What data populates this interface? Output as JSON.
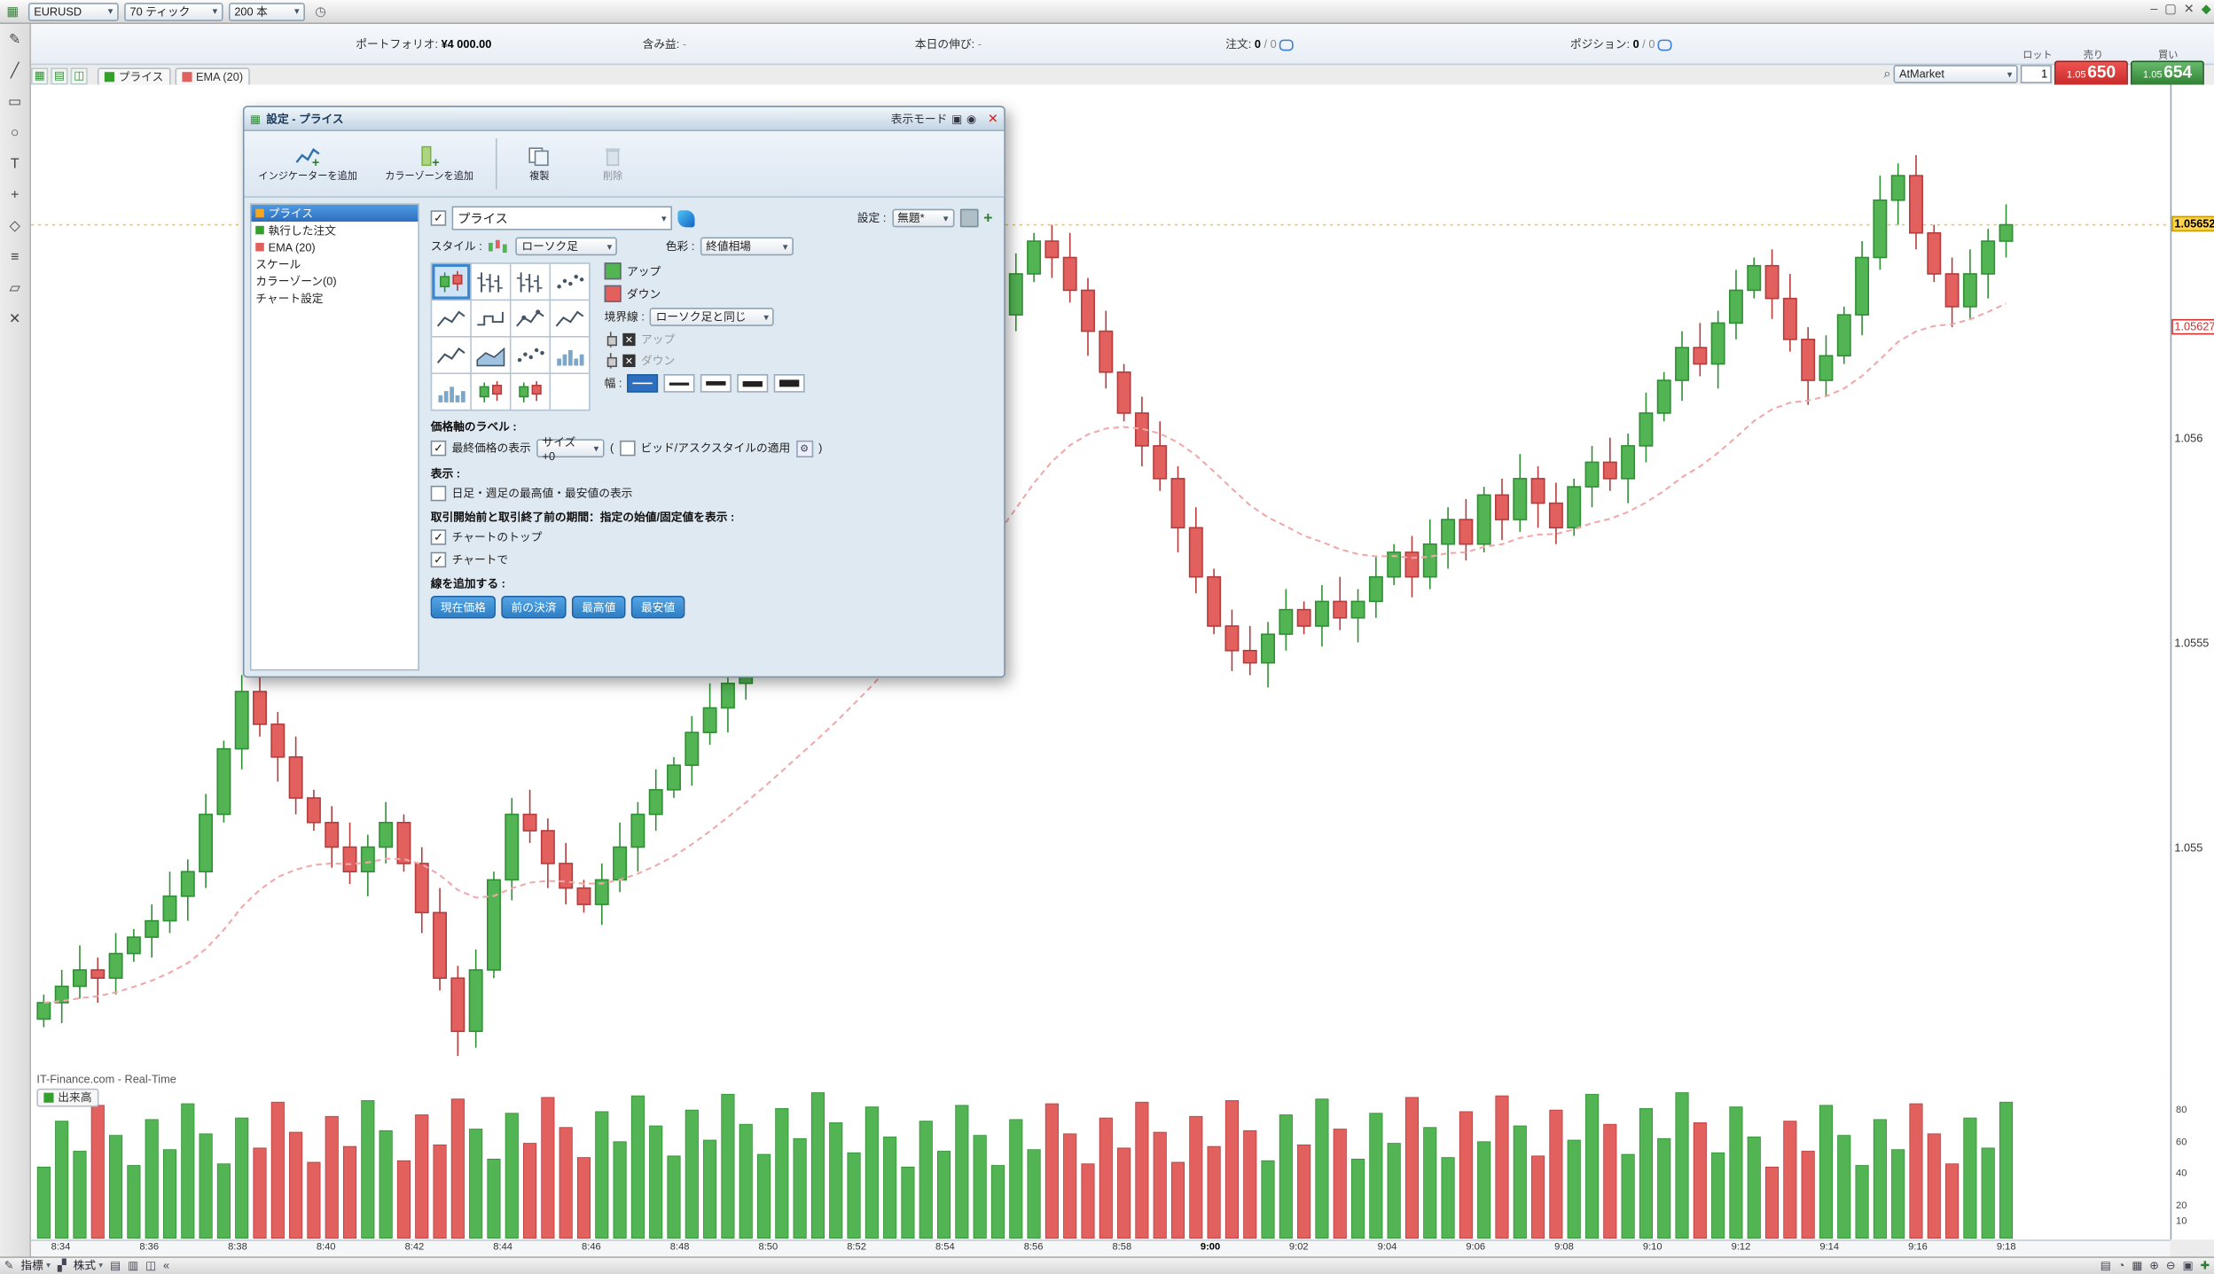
{
  "window": {
    "minimize": "‒",
    "maximize": "▢",
    "close": "✕",
    "corner_icon": "◆"
  },
  "top_toolbar": {
    "symbol": "EURUSD",
    "timeframe": "70 ティック",
    "bars": "200 本",
    "chart_icon": "▦",
    "alarm_icon": "◷"
  },
  "account_bar": {
    "items": [
      {
        "label": "ポートフォリオ:",
        "value": "¥4 000.00",
        "dim": false
      },
      {
        "label": "含み益:",
        "value": "-",
        "dim": true
      },
      {
        "label": "本日の伸び:",
        "value": "-",
        "dim": true
      },
      {
        "label": "注文:",
        "value": "0",
        "value2": "/ 0",
        "dim": false
      },
      {
        "label": "ポジション:",
        "value": "0",
        "value2": "/ 0",
        "dim": false
      }
    ]
  },
  "order_ticket": {
    "lot_label": "ロット",
    "sell_label": "売り",
    "buy_label": "買い",
    "lot_value": "1",
    "order_type": "AtMarket",
    "sell_price_small": "1.05",
    "sell_price_big": "650",
    "buy_price_small": "1.05",
    "buy_price_big": "654"
  },
  "legend": {
    "items": [
      {
        "label": "プライス",
        "color": "#33a02c"
      },
      {
        "label": "EMA (20)",
        "color": "#e0605e"
      }
    ]
  },
  "left_tools": [
    {
      "name": "pencil-icon",
      "glyph": "✎"
    },
    {
      "name": "line-icon",
      "glyph": "╱"
    },
    {
      "name": "rect-icon",
      "glyph": "▭"
    },
    {
      "name": "ellipse-icon",
      "glyph": "○"
    },
    {
      "name": "text-icon",
      "glyph": "T"
    },
    {
      "name": "crosshair-icon",
      "glyph": "+"
    },
    {
      "name": "shapes-icon",
      "glyph": "◇"
    },
    {
      "name": "layers-icon",
      "glyph": "≡"
    },
    {
      "name": "eraser-icon",
      "glyph": "▱"
    },
    {
      "name": "trash-icon",
      "glyph": "✕"
    }
  ],
  "dialog": {
    "title": "設定 - プライス",
    "display_mode_label": "表示モード",
    "toolbar": [
      {
        "label": "インジケーターを追加",
        "disabled": false
      },
      {
        "label": "カラーゾーンを追加",
        "disabled": false
      },
      {
        "label": "複製",
        "disabled": false
      },
      {
        "label": "削除",
        "disabled": true
      }
    ],
    "list": [
      {
        "label": "プライス",
        "color": "#f5a623",
        "selected": true
      },
      {
        "label": "執行した注文",
        "color": "#33a02c",
        "selected": false
      },
      {
        "label": "EMA (20)",
        "color": "#e0605e",
        "selected": false
      },
      {
        "label": "スケール",
        "color": "",
        "selected": false
      },
      {
        "label": "カラーゾーン(0)",
        "color": "",
        "selected": false
      },
      {
        "label": "チャート設定",
        "color": "",
        "selected": false
      }
    ],
    "name_value": "プライス",
    "settings_label": "設定 :",
    "preset_value": "無題*",
    "style_label": "スタイル :",
    "style_value": "ローソク足",
    "color_label": "色彩 :",
    "color_value": "終値相場",
    "up_label": "アップ",
    "down_label": "ダウン",
    "border_label": "境界線 :",
    "border_value": "ローソク足と同じ",
    "width_label": "幅 :",
    "price_axis_section": "価格軸のラベル :",
    "last_price_label": "最終価格の表示",
    "size_value": "サイズ +0",
    "paren_open": "(",
    "paren_close": ")",
    "bidask_label": "ビッド/アスクスタイルの適用",
    "display_section": "表示 :",
    "daily_hl_label": "日足・週足の最高値・最安値の表示",
    "session_section": "取引開始前と取引終了前の期間：指定の始値/固定値を表示 :",
    "chart_top_label": "チャートのトップ",
    "chart_in_label": "チャートで",
    "add_line_section": "線を追加する :",
    "line_buttons": [
      "現在価格",
      "前の決済",
      "最高値",
      "最安値"
    ],
    "style_grid": [
      "candles",
      "bars",
      "bars",
      "dots",
      "line",
      "step",
      "linedots",
      "line",
      "line",
      "area",
      "dots",
      "hist",
      "hist",
      "candles",
      "candles"
    ]
  },
  "chart_data": {
    "type": "candlestick+volume",
    "symbol": "EURUSD",
    "interval": "70 ティック",
    "bars_setting": "200 本",
    "watermark": "IT-Finance.com - Real-Time",
    "volume_legend": "出来高",
    "legend_series": [
      "プライス",
      "EMA (20)"
    ],
    "time_labels": [
      "8:34",
      "8:36",
      "8:38",
      "8:40",
      "8:42",
      "8:44",
      "8:46",
      "8:48",
      "8:50",
      "8:52",
      "8:54",
      "8:56",
      "8:58",
      "9:00",
      "9:02",
      "9:04",
      "9:06",
      "9:08",
      "9:10",
      "9:12",
      "9:14",
      "9:16",
      "9:18"
    ],
    "bold_time_label": "9:00",
    "price_axis_labels": [
      {
        "text": "1.056",
        "price": 1.056
      },
      {
        "text": "1.0555",
        "price": 1.0555
      },
      {
        "text": "1.055",
        "price": 1.055
      }
    ],
    "current_price": {
      "text": "1.05652",
      "price": 1.05652
    },
    "alt_price": {
      "text": "1.05627",
      "price": 1.05627
    },
    "volume_axis": [
      80,
      60,
      40,
      20,
      10
    ],
    "pip_base": 1.05,
    "first_open_pips": 458,
    "ema_period": 20,
    "closes_pips": [
      462,
      466,
      470,
      468,
      474,
      478,
      482,
      488,
      494,
      508,
      524,
      538,
      530,
      522,
      512,
      506,
      500,
      494,
      500,
      506,
      496,
      484,
      468,
      455,
      470,
      492,
      508,
      504,
      496,
      490,
      486,
      492,
      500,
      508,
      514,
      520,
      528,
      534,
      540,
      545,
      550,
      556,
      560,
      564,
      570,
      576,
      582,
      590,
      598,
      606,
      612,
      618,
      622,
      630,
      640,
      648,
      644,
      636,
      626,
      616,
      606,
      598,
      590,
      578,
      566,
      554,
      548,
      545,
      552,
      558,
      554,
      560,
      556,
      560,
      566,
      572,
      566,
      574,
      580,
      574,
      586,
      580,
      590,
      584,
      578,
      588,
      594,
      590,
      598,
      606,
      614,
      622,
      618,
      628,
      636,
      642,
      634,
      624,
      614,
      620,
      630,
      644,
      658,
      664,
      650,
      640,
      632,
      640,
      648,
      652
    ],
    "colors": {
      "up": "#53b453",
      "up_stroke": "#2f8f34",
      "down": "#e2605e",
      "down_stroke": "#b43c3c",
      "ema": "#f0a8a8"
    }
  },
  "bottom_toolbar": {
    "left": [
      {
        "name": "draw-icon",
        "glyph": "✎",
        "type": "icon"
      },
      {
        "name": "indicators-menu",
        "text": "指標",
        "type": "label"
      },
      {
        "name": "share-icon",
        "glyph": "▞",
        "type": "icon"
      },
      {
        "name": "stocks-menu",
        "text": "株式",
        "type": "label"
      },
      {
        "name": "panel-icon-1",
        "glyph": "▤",
        "type": "icon"
      },
      {
        "name": "panel-icon-2",
        "glyph": "▥",
        "type": "icon"
      },
      {
        "name": "panel-icon-3",
        "glyph": "◫",
        "type": "icon"
      },
      {
        "name": "collapse-icon",
        "glyph": "«",
        "type": "icon"
      }
    ],
    "right": [
      {
        "name": "list-icon",
        "glyph": "▤",
        "type": "icon"
      },
      {
        "name": "refresh-icon",
        "glyph": "◔",
        "type": "icon"
      },
      {
        "name": "calendar-icon",
        "glyph": "▦",
        "type": "icon"
      },
      {
        "name": "zoom-in-icon",
        "glyph": "⊕",
        "type": "icon"
      },
      {
        "name": "zoom-out-icon",
        "glyph": "⊖",
        "type": "icon"
      },
      {
        "name": "print-icon",
        "glyph": "▣",
        "type": "icon"
      },
      {
        "name": "add-chart-icon",
        "glyph": "✚",
        "type": "plus"
      }
    ]
  }
}
